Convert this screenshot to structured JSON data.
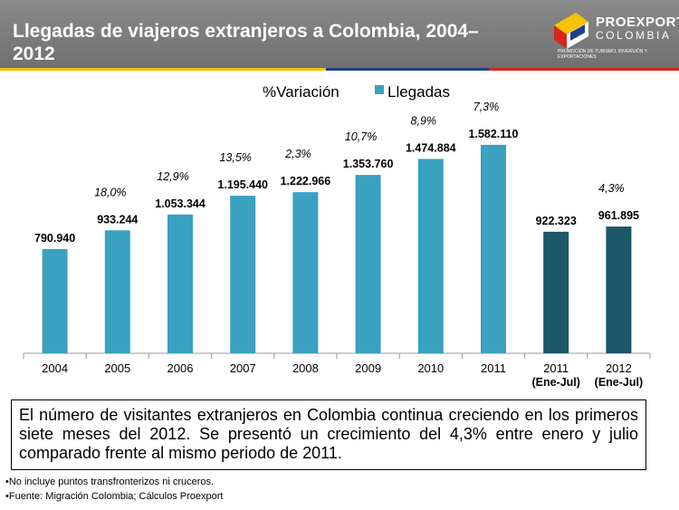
{
  "header": {
    "title": "Llegadas de viajeros extranjeros a Colombia,  2004–2012",
    "logo_main": "PROEXPORT",
    "logo_sub": "COLOMBIA",
    "logo_tagline": "PROMOCIÓN DE TURISMO, INVERSIÓN Y EXPORTACIONES"
  },
  "colors": {
    "bar_light": "#3aa1c1",
    "bar_dark": "#1c5868",
    "header_bg": "#7a7a7a",
    "stripe_yellow": "#f5c300",
    "stripe_blue": "#1f3d8c",
    "stripe_red": "#d7261e"
  },
  "chart_data": {
    "type": "bar",
    "categories": [
      "2004",
      "2005",
      "2006",
      "2007",
      "2008",
      "2009",
      "2010",
      "2011",
      "2011\n(Ene-Jul)",
      "2012\n(Ene-Jul)"
    ],
    "series": [
      {
        "name": "Llegadas",
        "values": [
          790940,
          933244,
          1053344,
          1195440,
          1222966,
          1353760,
          1474884,
          1582110,
          922323,
          961895
        ],
        "value_labels": [
          "790.940",
          "933.244",
          "1.053.344",
          "1.195.440",
          "1.222.966",
          "1.353.760",
          "1.474.884",
          "1.582.110",
          "922.323",
          "961.895"
        ]
      }
    ],
    "variation_labels": [
      "",
      "18,0%",
      "12,9%",
      "13,5%",
      "2,3%",
      "10,7%",
      "8,9%",
      "7,3%",
      "",
      "4,3%"
    ],
    "legend": {
      "variation": "%Variación",
      "arrivals": "Llegadas"
    },
    "legend_position": "top",
    "ylim": [
      0,
      1650000
    ],
    "grid": false
  },
  "note": "El número de visitantes extranjeros en Colombia continua creciendo en los primeros siete meses del 2012. Se presentó un crecimiento del 4,3% entre enero y julio comparado frente al mismo periodo de 2011.",
  "footnotes": [
    "•No incluye puntos transfronterizos ni cruceros.",
    "•Fuente: Migración Colombia; Cálculos Proexport"
  ]
}
